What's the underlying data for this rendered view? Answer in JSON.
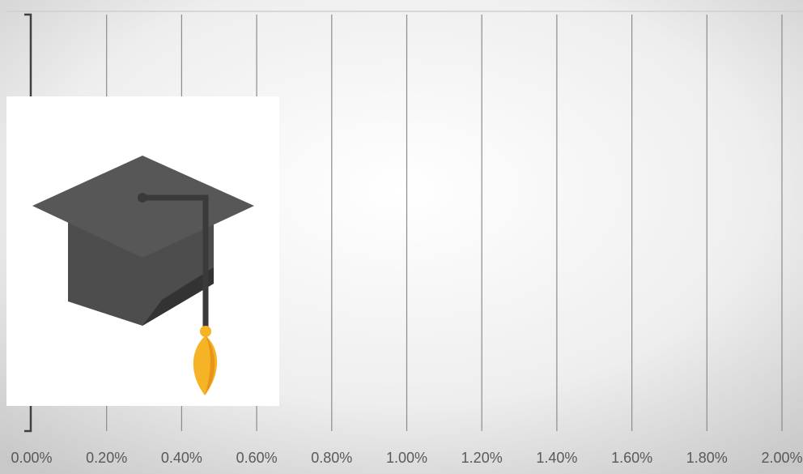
{
  "chart_data": {
    "type": "bar",
    "xlim": [
      0,
      2
    ],
    "xticks": [
      {
        "value": 0,
        "label": "0.00%"
      },
      {
        "value": 0.2,
        "label": "0.20%"
      },
      {
        "value": 0.4,
        "label": "0.40%"
      },
      {
        "value": 0.6,
        "label": "0.60%"
      },
      {
        "value": 0.8,
        "label": "0.80%"
      },
      {
        "value": 1,
        "label": "1.00%"
      },
      {
        "value": 1.2,
        "label": "1.20%"
      },
      {
        "value": 1.4,
        "label": "1.40%"
      },
      {
        "value": 1.6,
        "label": "1.60%"
      },
      {
        "value": 1.8,
        "label": "1.80%"
      },
      {
        "value": 2,
        "label": "2.00%"
      }
    ],
    "grid": true
  }
}
